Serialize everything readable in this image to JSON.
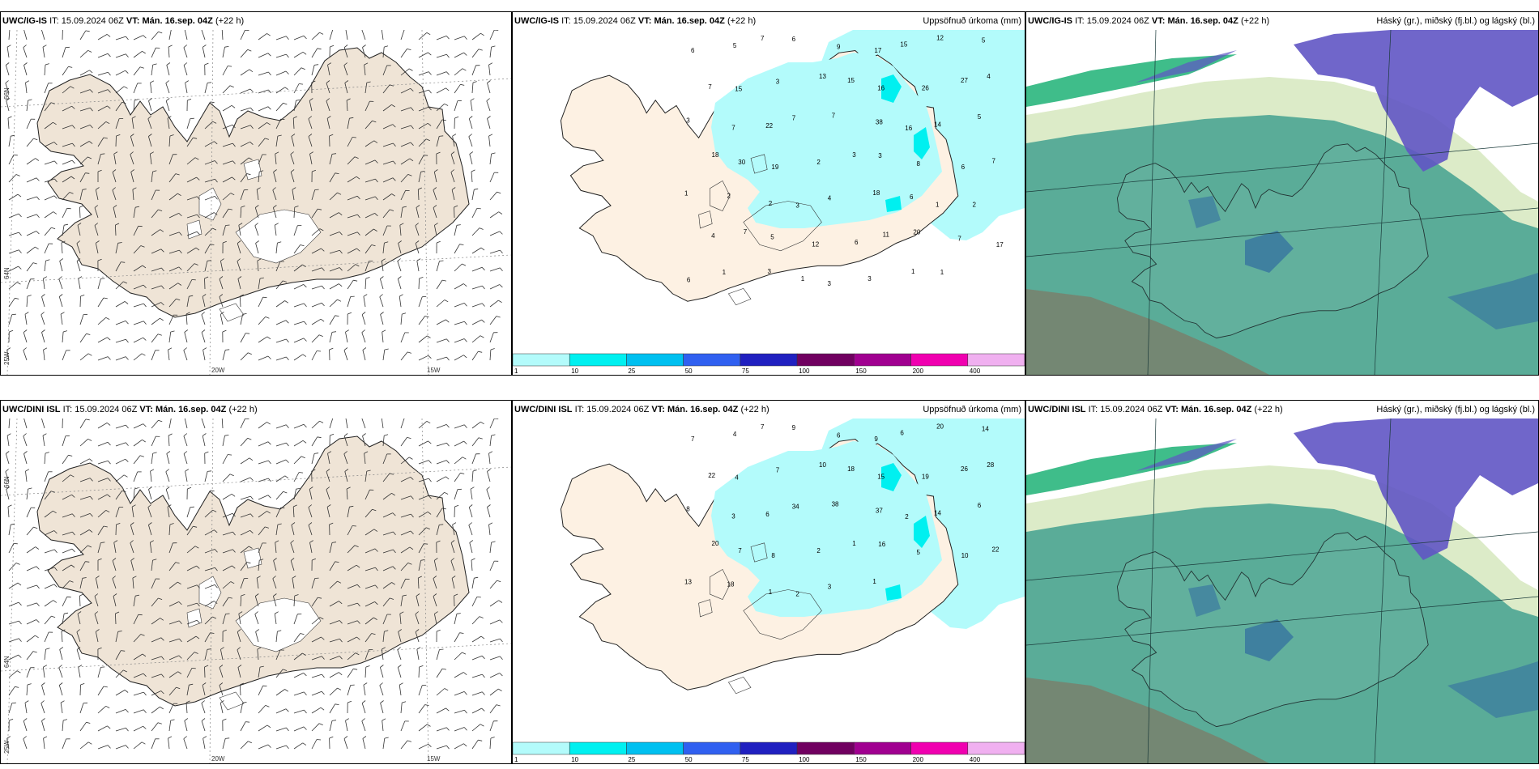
{
  "panels": [
    {
      "model": "UWC/IG-IS",
      "it_label": "IT:",
      "it": "15.09.2024 06Z",
      "vt_label": "VT:",
      "vt": "Mán. 16.sep. 04Z",
      "lead": "(+22 h)",
      "title": ""
    },
    {
      "model": "UWC/IG-IS",
      "it_label": "IT:",
      "it": "15.09.2024 06Z",
      "vt_label": "VT:",
      "vt": "Mán. 16.sep. 04Z",
      "lead": "(+22 h)",
      "title": "Uppsöfnuð úrkoma (mm)"
    },
    {
      "model": "UWC/IG-IS",
      "it_label": "IT:",
      "it": "15.09.2024 06Z",
      "vt_label": "VT:",
      "vt": "Mán. 16.sep. 04Z",
      "lead": "(+22 h)",
      "title": "Háský (gr.), miðský (fj.bl.) og lágský (bl.)"
    },
    {
      "model": "UWC/DINI ISL",
      "it_label": "IT:",
      "it": "15.09.2024 06Z",
      "vt_label": "VT:",
      "vt": "Mán. 16.sep. 04Z",
      "lead": "(+22 h)",
      "title": ""
    },
    {
      "model": "UWC/DINI ISL",
      "it_label": "IT:",
      "it": "15.09.2024 06Z",
      "vt_label": "VT:",
      "vt": "Mán. 16.sep. 04Z",
      "lead": "(+22 h)",
      "title": "Uppsöfnuð úrkoma (mm)"
    },
    {
      "model": "UWC/DINI ISL",
      "it_label": "IT:",
      "it": "15.09.2024 06Z",
      "vt_label": "VT:",
      "vt": "Mán. 16.sep. 04Z",
      "lead": "(+22 h)",
      "title": "Háský (gr.), miðský (fj.bl.) og lágský (bl.)"
    }
  ],
  "grid_labels": {
    "lat66": "66N",
    "lat64": "64N",
    "lon25": "25W",
    "lon20": "20W",
    "lon15": "15W"
  },
  "legend": {
    "labels": [
      "1",
      "10",
      "25",
      "50",
      "75",
      "100",
      "150",
      "200",
      "400"
    ],
    "colors": [
      "#b3fbfb",
      "#00f0f0",
      "#00c0f0",
      "#3060f0",
      "#2020c0",
      "#700060",
      "#a00090",
      "#f000b0",
      "#f0b0f0"
    ]
  },
  "precip_top": [
    "6",
    "5",
    "7",
    "6",
    "9",
    "17",
    "15",
    "12",
    "5",
    "7",
    "15",
    "3",
    "13",
    "15",
    "16",
    "26",
    "27",
    "4",
    "3",
    "7",
    "22",
    "7",
    "7",
    "38",
    "16",
    "14",
    "5",
    "18",
    "30",
    "19",
    "2",
    "3",
    "3",
    "8",
    "6",
    "7",
    "1",
    "2",
    "2",
    "3",
    "4",
    "18",
    "6",
    "1",
    "2",
    "4",
    "7",
    "5",
    "12",
    "6",
    "11",
    "20",
    "7",
    "17",
    "6",
    "1",
    "3",
    "1",
    "3",
    "3",
    "1",
    "1"
  ],
  "precip_bottom": [
    "7",
    "4",
    "7",
    "9",
    "6",
    "9",
    "6",
    "20",
    "14",
    "22",
    "4",
    "7",
    "10",
    "18",
    "15",
    "19",
    "26",
    "28",
    "8",
    "3",
    "6",
    "34",
    "38",
    "37",
    "2",
    "14",
    "6",
    "20",
    "7",
    "8",
    "2",
    "1",
    "16",
    "5",
    "10",
    "22",
    "13",
    "18",
    "1",
    "2",
    "3",
    "1"
  ],
  "colors": {
    "land": "#efe4d6",
    "land_precip": "#fdf1e3",
    "precip_light": "#b3fbfb",
    "precip_mid": "#00f0f0",
    "cloud_low": "#5aac98",
    "cloud_high": "#dcebc8",
    "cloud_mid": "#6055c4",
    "ocean_brown": "#8a6a55"
  }
}
